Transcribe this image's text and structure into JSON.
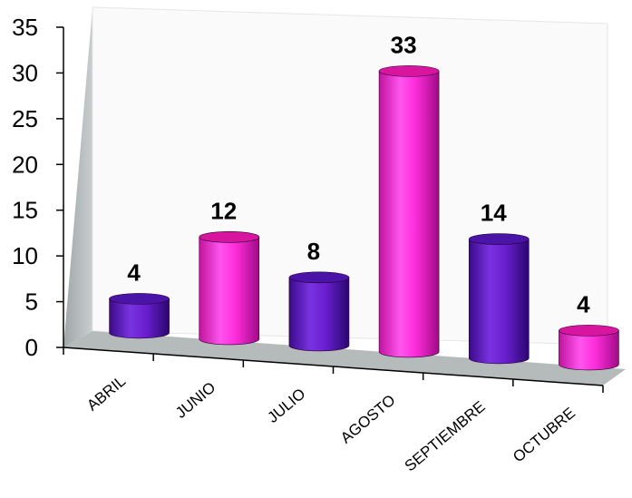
{
  "chart_data": {
    "type": "bar",
    "style": "3d-cylinder",
    "categories": [
      "ABRIL",
      "JUNIO",
      "JULIO",
      "AGOSTO",
      "SEPTIEMBRE",
      "OCTUBRE"
    ],
    "values": [
      4,
      12,
      8,
      33,
      14,
      4
    ],
    "data_labels": [
      "4",
      "12",
      "8",
      "33",
      "14",
      "4"
    ],
    "ylim": [
      0,
      35
    ],
    "y_ticks": [
      0,
      5,
      10,
      15,
      20,
      25,
      30,
      35
    ],
    "y_tick_labels": [
      "0",
      "5",
      "10",
      "15",
      "20",
      "25",
      "30",
      "35"
    ],
    "bar_colors": [
      "#6a1fd0",
      "#ff33dd",
      "#6a1fd0",
      "#ff33dd",
      "#6a1fd0",
      "#ff33dd"
    ],
    "grid": false,
    "legend": "none"
  }
}
